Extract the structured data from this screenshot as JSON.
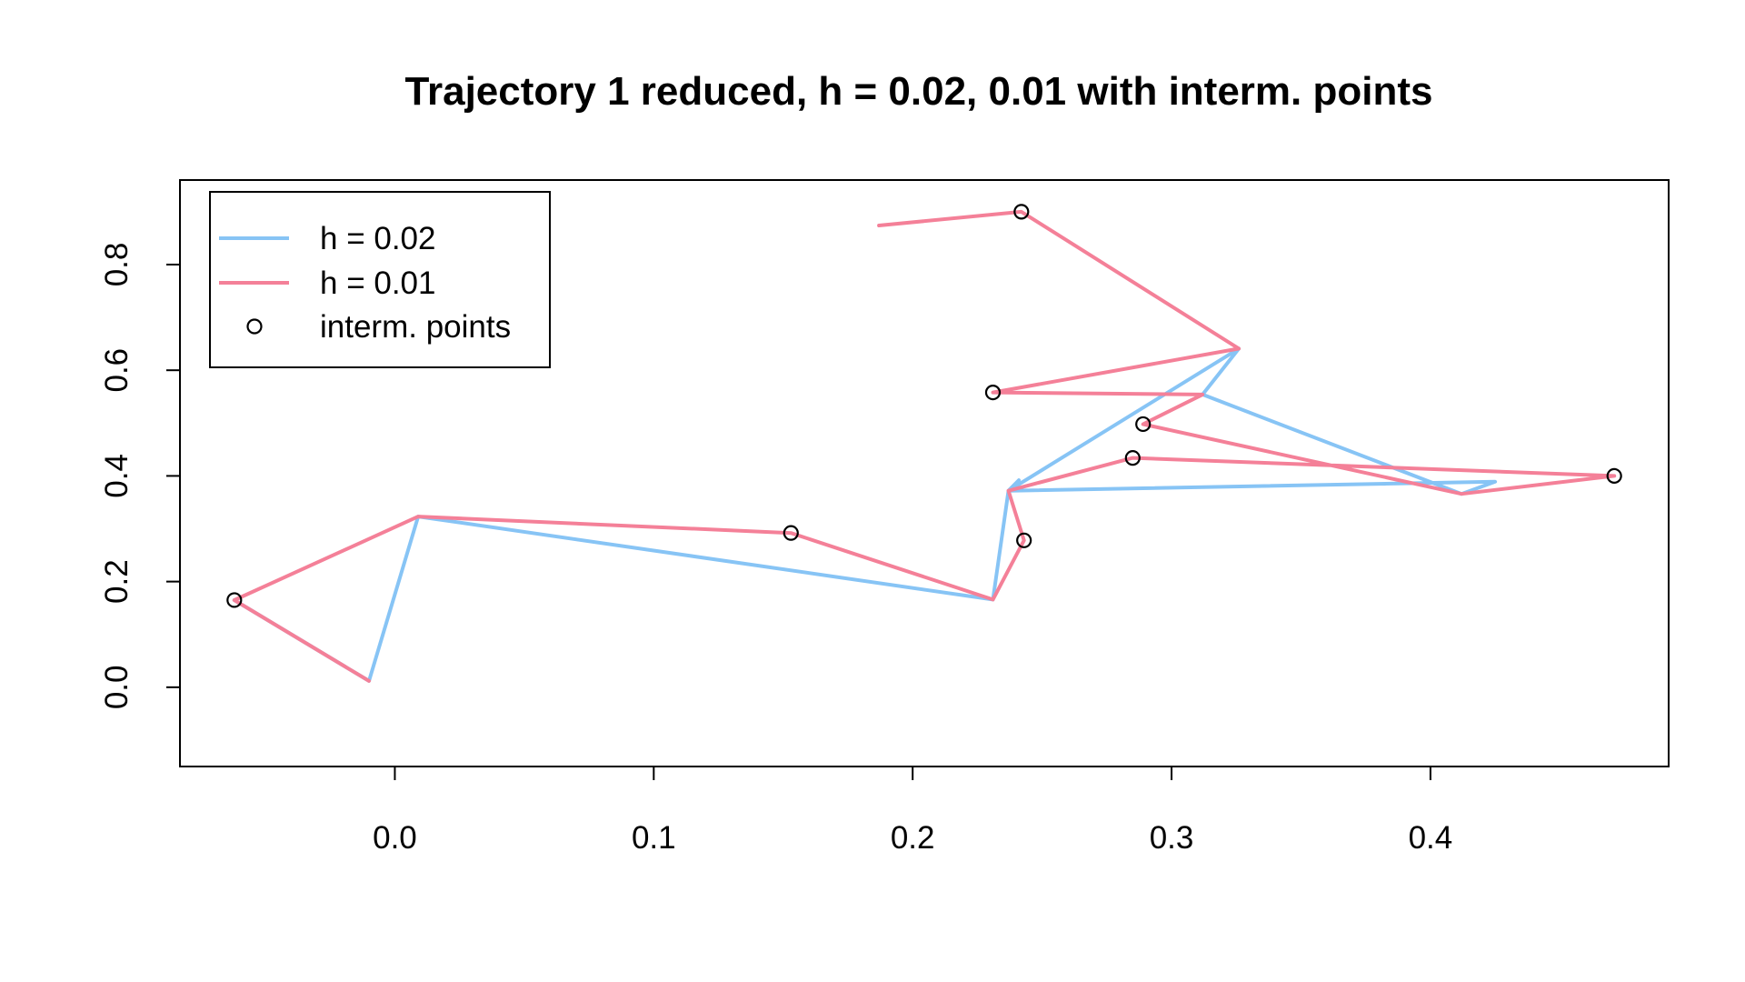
{
  "chart_data": {
    "type": "line",
    "title": "Trajectory 1 reduced, h = 0.02, 0.01 with interm. points",
    "xlabel": "",
    "ylabel": "",
    "xlim": [
      -0.083,
      0.492
    ],
    "ylim": [
      -0.15,
      0.96
    ],
    "x_ticks": [
      0.0,
      0.1,
      0.2,
      0.3,
      0.4
    ],
    "x_tick_labels": [
      "0.0",
      "0.1",
      "0.2",
      "0.3",
      "0.4"
    ],
    "y_ticks": [
      0.0,
      0.2,
      0.4,
      0.6,
      0.8
    ],
    "y_tick_labels": [
      "0.0",
      "0.2",
      "0.4",
      "0.6",
      "0.8"
    ],
    "grid": false,
    "legend_position": "top-left",
    "colors": {
      "h002": "#87C4F5",
      "h001": "#F48098",
      "points": "#000000",
      "axes": "#000000"
    },
    "series": [
      {
        "name": "h = 0.02",
        "color": "#87C4F5",
        "x": [
          -0.062,
          -0.01,
          0.009,
          0.231,
          0.237,
          0.326,
          0.312,
          0.412,
          0.425,
          0.237,
          0.241,
          0.237
        ],
        "y": [
          0.165,
          0.012,
          0.323,
          0.166,
          0.372,
          0.641,
          0.554,
          0.366,
          0.389,
          0.372,
          0.392,
          0.372
        ]
      },
      {
        "name": "h = 0.01",
        "color": "#F48098",
        "x": [
          -0.01,
          -0.062,
          0.009,
          0.153,
          0.231,
          0.243,
          0.237,
          0.285,
          0.471,
          0.412,
          0.289,
          0.312,
          0.231,
          0.326,
          0.242,
          0.187
        ],
        "y": [
          0.012,
          0.165,
          0.323,
          0.292,
          0.166,
          0.278,
          0.372,
          0.434,
          0.4,
          0.366,
          0.498,
          0.554,
          0.558,
          0.641,
          0.9,
          0.874
        ]
      }
    ],
    "points": {
      "name": "interm. points",
      "x": [
        -0.062,
        0.153,
        0.243,
        0.285,
        0.289,
        0.231,
        0.242,
        0.471
      ],
      "y": [
        0.165,
        0.292,
        0.278,
        0.434,
        0.498,
        0.558,
        0.9,
        0.4
      ]
    },
    "legend": [
      {
        "label": "h = 0.02",
        "kind": "line",
        "color": "#87C4F5"
      },
      {
        "label": "h = 0.01",
        "kind": "line",
        "color": "#F48098"
      },
      {
        "label": "interm. points",
        "kind": "point",
        "color": "#000000"
      }
    ]
  }
}
